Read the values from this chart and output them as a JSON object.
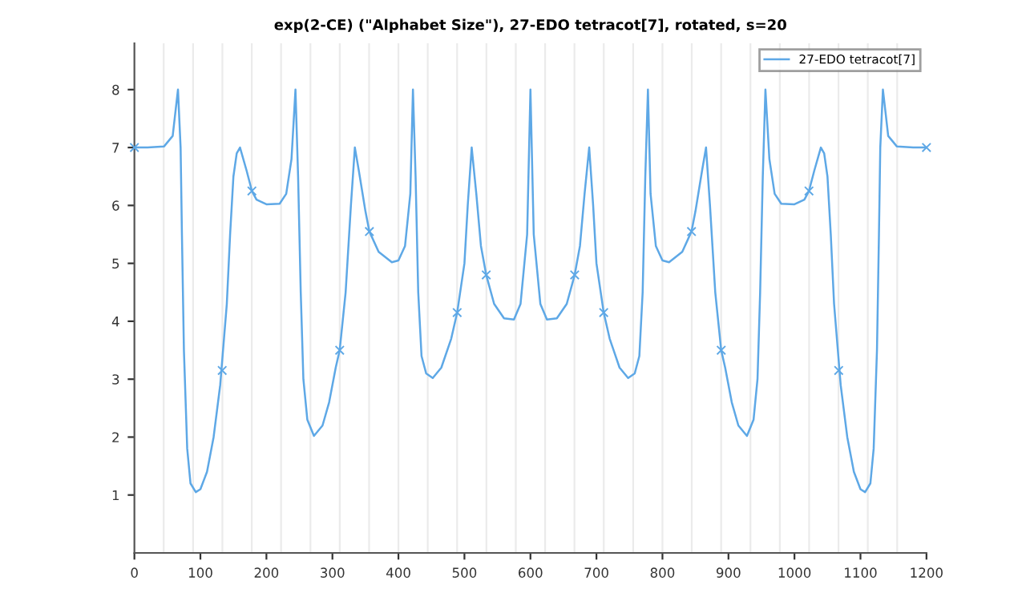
{
  "chart_data": {
    "type": "line",
    "title": "exp(2-CE) (\"Alphabet Size\"), 27-EDO tetracot[7], rotated, s=20",
    "series": [
      {
        "name": "27-EDO tetracot[7]",
        "color": "#5ea8e6",
        "x": [
          0,
          20,
          45,
          58,
          62,
          66,
          70,
          72,
          75,
          80,
          85,
          93,
          100,
          110,
          120,
          130,
          140,
          145,
          150,
          155,
          160,
          170,
          178,
          185,
          200,
          220,
          230,
          238,
          244,
          248,
          252,
          256,
          262,
          272,
          285,
          295,
          305,
          311,
          320,
          328,
          334,
          340,
          350,
          356,
          370,
          390,
          400,
          410,
          418,
          422,
          426,
          430,
          435,
          442,
          452,
          465,
          480,
          489,
          500,
          505,
          511,
          518,
          525,
          533,
          545,
          560,
          575,
          585,
          595,
          600,
          605,
          615,
          625,
          640,
          655,
          667,
          675,
          682,
          689,
          695,
          700,
          711,
          720,
          735,
          748,
          758,
          765,
          770,
          774,
          778,
          782,
          790,
          800,
          810,
          830,
          844,
          850,
          860,
          866,
          872,
          880,
          889,
          895,
          905,
          915,
          928,
          938,
          944,
          948,
          952,
          956,
          962,
          970,
          980,
          1000,
          1015,
          1022,
          1030,
          1040,
          1045,
          1050,
          1055,
          1060,
          1070,
          1080,
          1090,
          1100,
          1107,
          1115,
          1120,
          1125,
          1128,
          1130,
          1134,
          1138,
          1142,
          1155,
          1180,
          1200
        ],
        "values": [
          7,
          7,
          7.02,
          7.2,
          7.6,
          8,
          7,
          5.5,
          3.5,
          1.8,
          1.2,
          1.05,
          1.1,
          1.4,
          2.0,
          2.9,
          4.3,
          5.5,
          6.5,
          6.9,
          7.0,
          6.6,
          6.25,
          6.1,
          6.02,
          6.03,
          6.2,
          6.8,
          8,
          6.5,
          4.5,
          3.0,
          2.3,
          2.02,
          2.2,
          2.6,
          3.2,
          3.5,
          4.5,
          6.0,
          7.0,
          6.6,
          5.9,
          5.55,
          5.2,
          5.02,
          5.05,
          5.3,
          6.2,
          8,
          6.5,
          4.5,
          3.4,
          3.1,
          3.02,
          3.2,
          3.7,
          4.15,
          5.0,
          6.0,
          7.0,
          6.2,
          5.3,
          4.8,
          4.3,
          4.05,
          4.03,
          4.3,
          5.5,
          8,
          5.5,
          4.3,
          4.03,
          4.05,
          4.3,
          4.8,
          5.3,
          6.2,
          7.0,
          6.0,
          5.0,
          4.15,
          3.7,
          3.2,
          3.02,
          3.1,
          3.4,
          4.5,
          6.5,
          8,
          6.2,
          5.3,
          5.05,
          5.02,
          5.2,
          5.55,
          5.9,
          6.6,
          7.0,
          6.0,
          4.5,
          3.5,
          3.2,
          2.6,
          2.2,
          2.02,
          2.3,
          3.0,
          4.5,
          6.5,
          8,
          6.8,
          6.2,
          6.03,
          6.02,
          6.1,
          6.25,
          6.6,
          7.0,
          6.9,
          6.5,
          5.5,
          4.3,
          2.9,
          2.0,
          1.4,
          1.1,
          1.05,
          1.2,
          1.8,
          3.5,
          5.5,
          7,
          8,
          7.6,
          7.2,
          7.02,
          7,
          7
        ]
      },
      {
        "type": "scatter",
        "marker": "cross",
        "color": "#5ea8e6",
        "x": [
          0,
          133,
          178,
          311,
          356,
          489,
          533,
          667,
          711,
          844,
          889,
          1022,
          1067,
          1200
        ],
        "values": [
          7,
          3.15,
          6.25,
          3.5,
          5.55,
          4.15,
          4.8,
          4.8,
          4.15,
          5.55,
          3.5,
          6.25,
          3.15,
          7
        ]
      }
    ],
    "xlim": [
      0,
      1200
    ],
    "xticks": [
      0,
      100,
      200,
      300,
      400,
      500,
      600,
      700,
      800,
      900,
      1000,
      1100,
      1200
    ],
    "ylim": [
      0,
      8.8
    ],
    "yticks": [
      1,
      2,
      3,
      4,
      5,
      6,
      7,
      8
    ],
    "ref_lines": [
      {
        "axis": "x",
        "value": 44.4,
        "color": "#ebebeb"
      },
      {
        "axis": "x",
        "value": 88.9,
        "color": "#ebebeb"
      },
      {
        "axis": "x",
        "value": 133.3,
        "color": "#ebebeb"
      },
      {
        "axis": "x",
        "value": 177.8,
        "color": "#ebebeb"
      },
      {
        "axis": "x",
        "value": 222.2,
        "color": "#ebebeb"
      },
      {
        "axis": "x",
        "value": 266.7,
        "color": "#ebebeb"
      },
      {
        "axis": "x",
        "value": 311.1,
        "color": "#ebebeb"
      },
      {
        "axis": "x",
        "value": 355.6,
        "color": "#ebebeb"
      },
      {
        "axis": "x",
        "value": 400,
        "color": "#ebebeb"
      },
      {
        "axis": "x",
        "value": 444.4,
        "color": "#ebebeb"
      },
      {
        "axis": "x",
        "value": 488.9,
        "color": "#ebebeb"
      },
      {
        "axis": "x",
        "value": 533.3,
        "color": "#ebebeb"
      },
      {
        "axis": "x",
        "value": 577.8,
        "color": "#ebebeb"
      },
      {
        "axis": "x",
        "value": 622.2,
        "color": "#ebebeb"
      },
      {
        "axis": "x",
        "value": 666.7,
        "color": "#ebebeb"
      },
      {
        "axis": "x",
        "value": 711.1,
        "color": "#ebebeb"
      },
      {
        "axis": "x",
        "value": 755.6,
        "color": "#ebebeb"
      },
      {
        "axis": "x",
        "value": 800,
        "color": "#ebebeb"
      },
      {
        "axis": "x",
        "value": 844.4,
        "color": "#ebebeb"
      },
      {
        "axis": "x",
        "value": 888.9,
        "color": "#ebebeb"
      },
      {
        "axis": "x",
        "value": 933.3,
        "color": "#ebebeb"
      },
      {
        "axis": "x",
        "value": 977.8,
        "color": "#ebebeb"
      },
      {
        "axis": "x",
        "value": 1022.2,
        "color": "#ebebeb"
      },
      {
        "axis": "x",
        "value": 1066.7,
        "color": "#ebebeb"
      },
      {
        "axis": "x",
        "value": 1111.1,
        "color": "#ebebeb"
      },
      {
        "axis": "x",
        "value": 1155.6,
        "color": "#ebebeb"
      }
    ],
    "legend": "top right",
    "grid": false
  }
}
